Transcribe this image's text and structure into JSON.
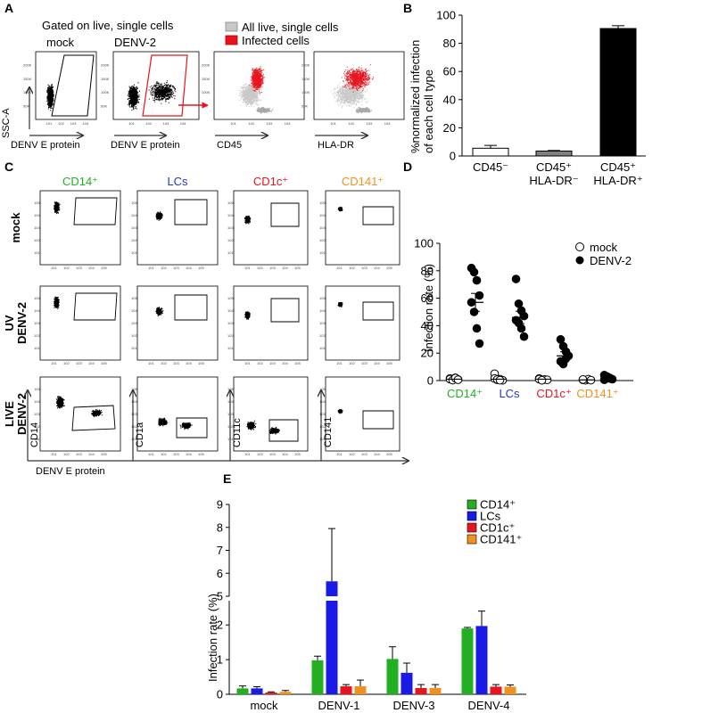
{
  "panel_letters": {
    "a": "A",
    "b": "B",
    "c": "C",
    "d": "D",
    "e": "E"
  },
  "panel_a": {
    "header": "Gated on live, single cells",
    "titles": [
      "mock",
      "DENV-2"
    ],
    "y_label": "SSC-A",
    "x_labels": [
      "DENV E protein",
      "DENV E protein",
      "CD45",
      "HLA-DR"
    ],
    "legend": [
      {
        "label": "All live, single cells",
        "color": "#c8c8c8"
      },
      {
        "label": "Infected cells",
        "color": "#e8141e"
      }
    ]
  },
  "panel_c": {
    "columns": [
      {
        "label": "CD14⁺",
        "color": "#22b022"
      },
      {
        "label": "LCs",
        "color": "#2538b8"
      },
      {
        "label": "CD1c⁺",
        "color": "#e8141e"
      },
      {
        "label": "CD141⁺",
        "color": "#f0901e"
      }
    ],
    "rows": [
      "mock",
      "UV DENV-2",
      "LIVE DENV-2"
    ],
    "y_labels": [
      "CD14",
      "CD1a",
      "CD11c",
      "CD141"
    ],
    "x_label": "DENV E protein"
  },
  "chart_data": [
    {
      "type": "bar",
      "panel": "B",
      "ylabel": "%normalized infection of each cell type",
      "ylim": [
        0,
        100
      ],
      "yticks": [
        "0",
        "20",
        "40",
        "60",
        "80",
        "100"
      ],
      "categories": [
        "CD45⁻",
        "CD45⁺ HLA-DR⁻",
        "CD45⁺ HLA-DR⁺"
      ],
      "category_lines": [
        [
          "CD45⁻"
        ],
        [
          "CD45⁺",
          "HLA-DR⁻"
        ],
        [
          "CD45⁺",
          "HLA-DR⁺"
        ]
      ],
      "values": [
        5.5,
        3.5,
        90.5
      ],
      "errors": [
        2,
        0.4,
        2
      ],
      "colors": [
        "#ffffff",
        "#808080",
        "#000000"
      ]
    },
    {
      "type": "scatter",
      "panel": "D",
      "ylabel": "Infection rate (%)",
      "ylim": [
        0,
        100
      ],
      "yticks": [
        "0",
        "20",
        "40",
        "60",
        "80",
        "100"
      ],
      "categories": [
        "CD14⁺",
        "LCs",
        "CD1c⁺",
        "CD141⁺"
      ],
      "category_colors": [
        "#22b022",
        "#2538b8",
        "#e8141e",
        "#f0901e"
      ],
      "series": [
        {
          "name": "mock",
          "values": [
            [
              1.5,
              0.5,
              2,
              0.8,
              1,
              0.3,
              1.8,
              0.6
            ],
            [
              5,
              0.5,
              1,
              0.2,
              1.5,
              0.8,
              0.3
            ],
            [
              1.5,
              0.3,
              0.8,
              0.5,
              1,
              0.2
            ],
            [
              0.5,
              0.2,
              1,
              0.3,
              0.8
            ]
          ]
        },
        {
          "name": "DENV-2",
          "values": [
            [
              82,
              79,
              73,
              62,
              57,
              50,
              38,
              27
            ],
            [
              74,
              56,
              51,
              47,
              44,
              42,
              38,
              32
            ],
            [
              30,
              25,
              21,
              18,
              14,
              12,
              16
            ],
            [
              4,
              3,
              2,
              1,
              0.5,
              2.5,
              1.5
            ]
          ]
        }
      ],
      "means": [
        [
          1,
          57,
          6.5
        ],
        [
          1,
          46,
          4.5
        ],
        [
          1,
          18,
          3
        ],
        [
          0.5,
          2,
          0.5
        ]
      ],
      "legend": [
        "mock",
        "DENV-2"
      ]
    },
    {
      "type": "bar",
      "panel": "E",
      "ylabel": "Infection rate (%)",
      "broken_axis": true,
      "lower_range": [
        0,
        2.7
      ],
      "upper_range": [
        5,
        9
      ],
      "yticks_lower": [
        "0",
        "1",
        "2"
      ],
      "yticks_upper": [
        "5",
        "6",
        "7",
        "8",
        "9"
      ],
      "categories": [
        "mock",
        "DENV-1",
        "DENV-3",
        "DENV-4"
      ],
      "series": [
        {
          "name": "CD14⁺",
          "color": "#22b022",
          "values": [
            0.17,
            0.98,
            1.02,
            1.9
          ],
          "errors": [
            0.07,
            0.12,
            0.35,
            0.03
          ]
        },
        {
          "name": "LCs",
          "color": "#1a1ae6",
          "values": [
            0.17,
            5.65,
            0.62,
            1.97
          ],
          "errors": [
            0.05,
            2.3,
            0.28,
            0.43
          ]
        },
        {
          "name": "CD1c⁺",
          "color": "#e8141e",
          "values": [
            0.05,
            0.23,
            0.18,
            0.22
          ],
          "errors": [
            0.02,
            0.05,
            0.1,
            0.06
          ]
        },
        {
          "name": "CD141⁺",
          "color": "#f0901e",
          "values": [
            0.07,
            0.23,
            0.18,
            0.22
          ],
          "errors": [
            0.04,
            0.18,
            0.1,
            0.05
          ]
        }
      ]
    }
  ]
}
